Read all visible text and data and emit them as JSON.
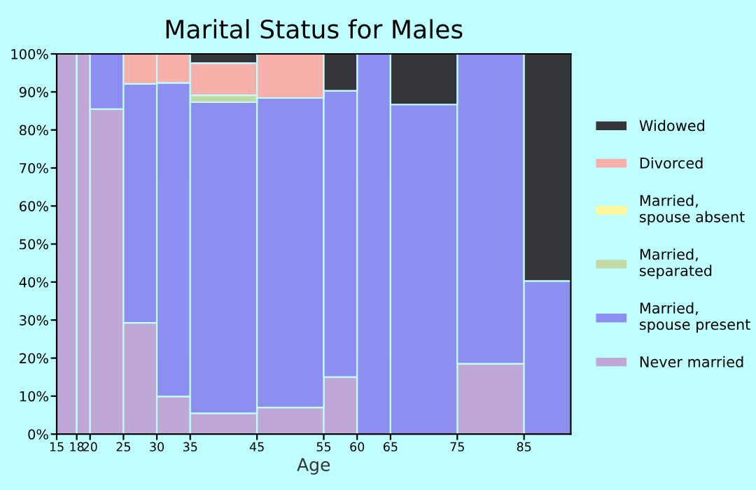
{
  "chart_data": {
    "type": "bar",
    "stacked": true,
    "title": "Marital Status for Males",
    "xlabel": "Age",
    "x": [
      16.5,
      19,
      22.5,
      27.5,
      32.5,
      40,
      50,
      57.5,
      62.5,
      70,
      80,
      88.5
    ],
    "series": [
      {
        "name": "Never married",
        "color": "#bfa7d8",
        "values": [
          100,
          100,
          85.5,
          29.3,
          9.9,
          5.5,
          7.0,
          15.0,
          0,
          0,
          18.5,
          0
        ]
      },
      {
        "name": "Married, spouse present",
        "color": "#8d8ff0",
        "values": [
          0,
          0,
          14.5,
          62.8,
          82.5,
          81.8,
          81.4,
          75.3,
          100,
          86.7,
          81.5,
          40.3
        ]
      },
      {
        "name": "Married, separated",
        "color": "#c2d9a4",
        "values": [
          0,
          0,
          0,
          0,
          0,
          1.8,
          0,
          0,
          0,
          0,
          0,
          0
        ]
      },
      {
        "name": "Married, spouse absent",
        "color": "#fff79a",
        "values": [
          0,
          0,
          0,
          0,
          0,
          0,
          0,
          0,
          0,
          0,
          0,
          0
        ]
      },
      {
        "name": "Divorced",
        "color": "#f8b0aa",
        "values": [
          0,
          0,
          0,
          7.9,
          7.6,
          8.5,
          11.6,
          0,
          0,
          0,
          0,
          0
        ]
      },
      {
        "name": "Widowed",
        "color": "#34353b",
        "values": [
          0,
          0,
          0,
          0,
          0,
          2.4,
          0,
          9.7,
          0,
          13.3,
          0,
          59.7
        ]
      }
    ],
    "xlim": [
      15,
      92
    ],
    "xticks": [
      15,
      18,
      20,
      25,
      30,
      35,
      45,
      55,
      60,
      65,
      75,
      85
    ],
    "ylim": [
      0,
      100
    ],
    "yticks": [
      {
        "value": 0,
        "label": "0%"
      },
      {
        "value": 10,
        "label": "10%"
      },
      {
        "value": 20,
        "label": "20%"
      },
      {
        "value": 30,
        "label": "30%"
      },
      {
        "value": 40,
        "label": "40%"
      },
      {
        "value": 50,
        "label": "50%"
      },
      {
        "value": 60,
        "label": "60%"
      },
      {
        "value": 70,
        "label": "70%"
      },
      {
        "value": 80,
        "label": "80%"
      },
      {
        "value": 90,
        "label": "90%"
      },
      {
        "value": 100,
        "label": "100%"
      }
    ],
    "grid": false,
    "legend": "right"
  }
}
